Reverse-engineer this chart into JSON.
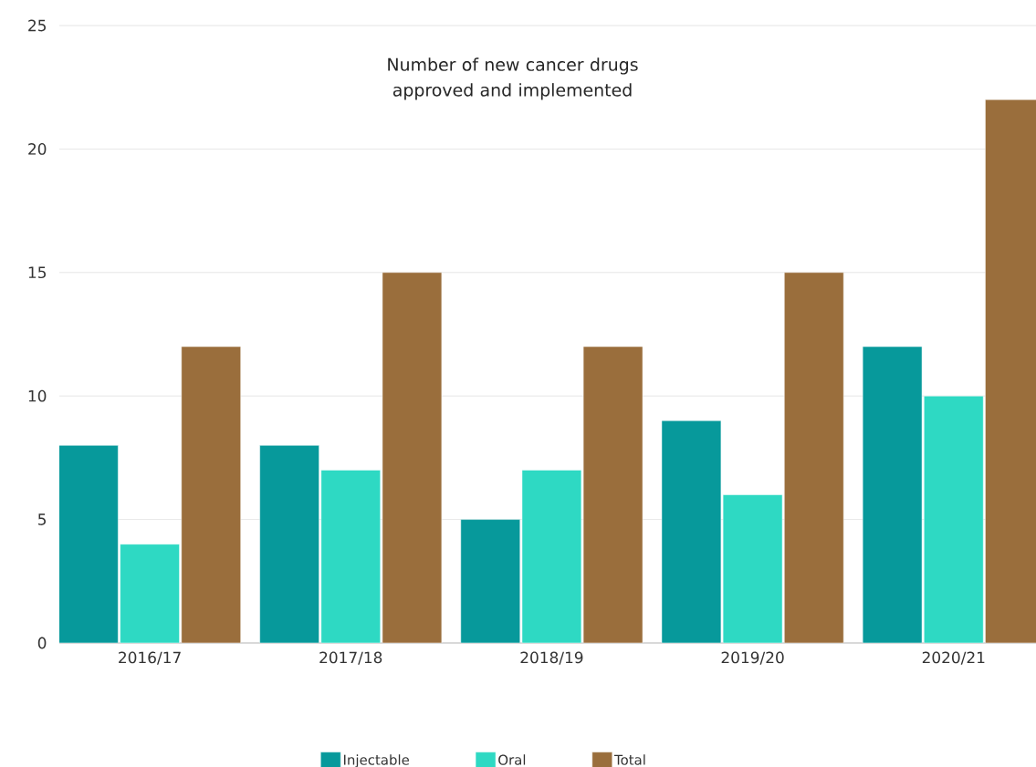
{
  "chart_data": {
    "type": "bar",
    "title": "Number of new cancer drugs approved and implemented",
    "categories": [
      "2016/17",
      "2017/18",
      "2018/19",
      "2019/20",
      "2020/21"
    ],
    "series": [
      {
        "name": "Injectable",
        "color": "#07999b",
        "values": [
          8,
          8,
          5,
          9,
          12
        ]
      },
      {
        "name": "Oral",
        "color": "#2ed9c3",
        "values": [
          4,
          7,
          7,
          6,
          10
        ]
      },
      {
        "name": "Total",
        "color": "#9a6e3c",
        "values": [
          12,
          15,
          12,
          15,
          22
        ]
      }
    ],
    "ylim": [
      0,
      25
    ],
    "yticks": [
      0,
      5,
      10,
      15,
      20,
      25
    ],
    "grid": "y",
    "legend": "bottom"
  }
}
